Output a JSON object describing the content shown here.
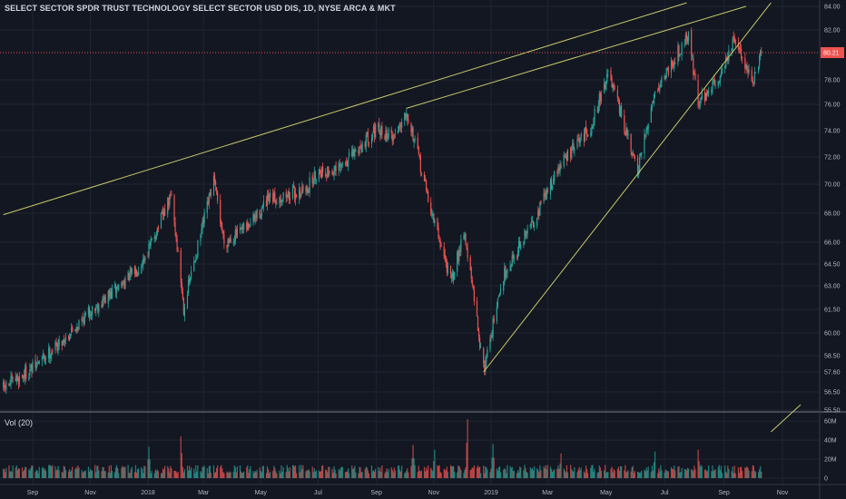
{
  "header": {
    "title": "SELECT SECTOR SPDR TRUST TECHNOLOGY SELECT SECTOR USD DIS, 1D, NYSE ARCA & MKT"
  },
  "volume_pane": {
    "label": "Vol (20)"
  },
  "colors": {
    "background": "#131722",
    "grid": "#1f2433",
    "up": "#26a69a",
    "down": "#ef5350",
    "trendline": "#c5c86a",
    "last_price": "#ef5350",
    "text": "#b2b5be"
  },
  "chart_data": [
    {
      "type": "candlestick",
      "title": "SELECT SECTOR SPDR TRUST TECHNOLOGY SELECT SECTOR USD DIS, 1D, NYSE ARCA & MKT",
      "x_ticks": [
        "Sep",
        "Nov",
        "2018",
        "Mar",
        "May",
        "Jul",
        "Sep",
        "Nov",
        "2019",
        "Mar",
        "May",
        "Jul",
        "Sep",
        "Nov"
      ],
      "y_ticks": [
        "84.00",
        "82.00",
        "80.21",
        "78.00",
        "76.00",
        "74.00",
        "72.00",
        "70.00",
        "68.00",
        "66.00",
        "64.50",
        "63.00",
        "61.50",
        "60.00",
        "58.50",
        "57.60",
        "56.50",
        "55.50"
      ],
      "y_tick_values": [
        84.0,
        82.0,
        78.0,
        76.0,
        74.0,
        72.0,
        70.0,
        68.0,
        66.0,
        64.5,
        63.0,
        61.5,
        60.0,
        58.5,
        57.6,
        56.5,
        55.5
      ],
      "ylim": [
        55.5,
        84.3
      ],
      "y_scale": "log",
      "last_price": {
        "label": "80.21",
        "value": 80.21
      },
      "price_path_dates": [
        "2017-08-01",
        "2017-09-01",
        "2017-10-01",
        "2017-11-01",
        "2017-11-20",
        "2017-12-20",
        "2018-01-01",
        "2018-01-26",
        "2018-02-08",
        "2018-03-12",
        "2018-03-23",
        "2018-04-15",
        "2018-05-10",
        "2018-06-18",
        "2018-07-01",
        "2018-07-20",
        "2018-08-10",
        "2018-08-29",
        "2018-09-20",
        "2018-10-03",
        "2018-10-29",
        "2018-11-20",
        "2018-12-03",
        "2018-12-24",
        "2019-01-15",
        "2019-02-15",
        "2019-03-15",
        "2019-04-15",
        "2019-05-03",
        "2019-06-03",
        "2019-06-20",
        "2019-07-26",
        "2019-08-05",
        "2019-08-26",
        "2019-09-12",
        "2019-10-02",
        "2019-10-10"
      ],
      "price_path_closes": [
        56.7,
        57.8,
        59.4,
        61.4,
        62.3,
        64.1,
        65.4,
        69.2,
        61.6,
        70.3,
        66.0,
        66.9,
        68.9,
        69.6,
        71.0,
        70.9,
        72.4,
        74.0,
        73.6,
        75.6,
        68.2,
        63.2,
        66.9,
        57.7,
        63.9,
        67.6,
        71.5,
        74.3,
        78.5,
        70.8,
        76.9,
        81.7,
        76.1,
        78.1,
        81.2,
        77.8,
        80.21
      ],
      "trendlines": [
        {
          "from": [
            "2017-08-01",
            67.9
          ],
          "to": [
            "2019-07-24",
            84.3
          ]
        },
        {
          "from": [
            "2018-10-03",
            75.7
          ],
          "to": [
            "2019-09-24",
            84.0
          ]
        },
        {
          "from": [
            "2018-12-24",
            57.6
          ],
          "to": [
            "2019-10-20",
            84.3
          ]
        },
        {
          "from": [
            "2019-10-20",
            54.3
          ],
          "to": [
            "2019-11-20",
            55.8
          ]
        }
      ],
      "grid": true
    },
    {
      "type": "bar",
      "title": "Vol (20)",
      "y_ticks": [
        "60M",
        "40M",
        "20M",
        "0"
      ],
      "y_tick_values": [
        60,
        40,
        20,
        0
      ],
      "ylim": [
        0,
        65
      ],
      "unit": "M",
      "typical_volume": 10,
      "volume_spikes": [
        {
          "date": "2018-02-05",
          "value": 44
        },
        {
          "date": "2018-12-07",
          "value": 62
        },
        {
          "date": "2018-01-02",
          "value": 33
        },
        {
          "date": "2018-10-10",
          "value": 35
        },
        {
          "date": "2019-01-03",
          "value": 36
        },
        {
          "date": "2019-06-21",
          "value": 28
        },
        {
          "date": "2019-08-05",
          "value": 30
        },
        {
          "date": "2018-11-02",
          "value": 30
        },
        {
          "date": "2019-03-15",
          "value": 26
        }
      ],
      "grid": true
    }
  ]
}
